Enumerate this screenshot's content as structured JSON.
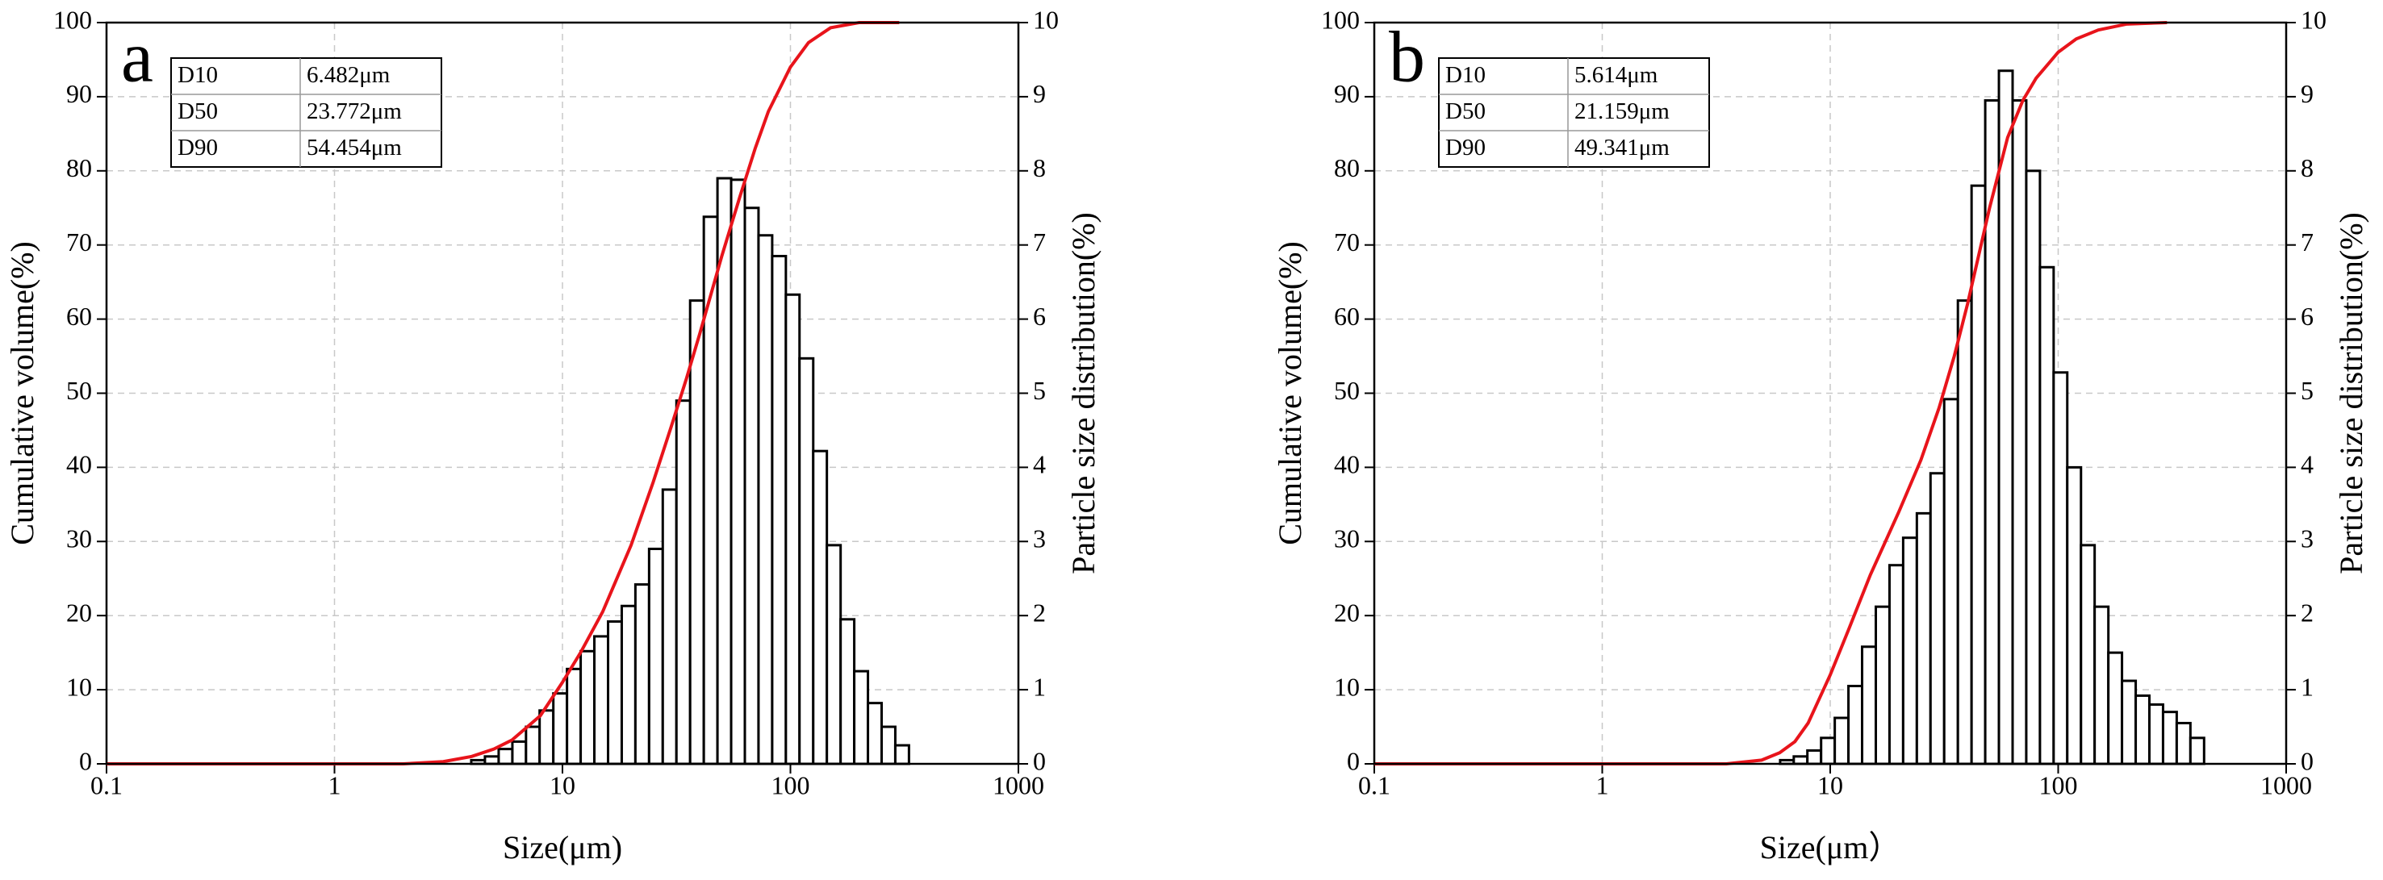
{
  "chart_data": [
    {
      "type": "histogram",
      "panel_label": "a",
      "xlabel": "Size(μm)",
      "ylabel": "Cumulative volume(%)",
      "y2label": "Particle size distribution(%)",
      "table": [
        [
          "D10",
          "6.482μm"
        ],
        [
          "D50",
          "23.772μm"
        ],
        [
          "D90",
          "54.454μm"
        ]
      ],
      "xscale": "log",
      "xlim": [
        0.1,
        1000
      ],
      "xticks": [
        0.1,
        1,
        10,
        100,
        1000
      ],
      "ylim": [
        0,
        100
      ],
      "yticks": [
        0,
        10,
        20,
        30,
        40,
        50,
        60,
        70,
        80,
        90,
        100
      ],
      "y2lim": [
        0,
        10
      ],
      "y2ticks": [
        0,
        1,
        2,
        3,
        4,
        5,
        6,
        7,
        8,
        9,
        10
      ],
      "grid": true,
      "bar_color": "#ffffff",
      "edge_color": "#000000",
      "counts_axis": "y2",
      "bins": [
        3.98,
        4.57,
        5.25,
        6.03,
        6.92,
        7.94,
        9.12,
        10.47,
        12.02,
        13.8,
        15.85,
        18.2,
        20.89,
        23.99,
        27.54,
        31.62,
        36.31,
        41.69,
        47.86,
        54.95,
        63.1,
        72.44,
        83.18,
        95.5,
        109.6,
        125.9,
        144.5,
        166,
        190.5,
        218.8,
        251.2,
        288.4,
        331.1
      ],
      "counts": [
        0.05,
        0.1,
        0.2,
        0.3,
        0.5,
        0.72,
        0.95,
        1.28,
        1.52,
        1.72,
        1.92,
        2.13,
        2.42,
        2.9,
        3.7,
        4.9,
        6.25,
        7.38,
        7.9,
        7.88,
        7.5,
        7.13,
        6.85,
        6.33,
        5.47,
        4.22,
        2.95,
        1.95,
        1.25,
        0.82,
        0.5,
        0.25
      ],
      "curve": {
        "color": "#e8141b",
        "axis": "y",
        "x": [
          0.1,
          2,
          3,
          4,
          5,
          6,
          8,
          10,
          12,
          15,
          20,
          25,
          30,
          35,
          40,
          50,
          60,
          70,
          80,
          100,
          120,
          150,
          200,
          300
        ],
        "values": [
          0,
          0,
          0.3,
          1,
          2,
          3.2,
          6.5,
          11,
          15,
          20.5,
          29.5,
          38,
          45.5,
          52,
          58,
          68.5,
          76.5,
          83,
          88,
          94,
          97.3,
          99.3,
          100,
          100
        ]
      }
    },
    {
      "type": "histogram",
      "panel_label": "b",
      "xlabel": "Size(μm）",
      "ylabel": "Cumulative volume(%)",
      "y2label": "Particle size distribution(%)",
      "table": [
        [
          "D10",
          "5.614μm"
        ],
        [
          "D50",
          "21.159μm"
        ],
        [
          "D90",
          "49.341μm"
        ]
      ],
      "xscale": "log",
      "xlim": [
        0.1,
        1000
      ],
      "xticks": [
        0.1,
        1,
        10,
        100,
        1000
      ],
      "ylim": [
        0,
        100
      ],
      "yticks": [
        0,
        10,
        20,
        30,
        40,
        50,
        60,
        70,
        80,
        90,
        100
      ],
      "y2lim": [
        0,
        10
      ],
      "y2ticks": [
        0,
        1,
        2,
        3,
        4,
        5,
        6,
        7,
        8,
        9,
        10
      ],
      "grid": true,
      "bar_color": "#ffffff",
      "edge_color": "#000000",
      "counts_axis": "y2",
      "bins": [
        6.03,
        6.92,
        7.94,
        9.12,
        10.47,
        12.02,
        13.8,
        15.85,
        18.2,
        20.89,
        23.99,
        27.54,
        31.62,
        36.31,
        41.69,
        47.86,
        54.95,
        63.1,
        72.44,
        83.18,
        95.5,
        109.6,
        125.9,
        144.5,
        166,
        190.5,
        218.8,
        251.2,
        288.4,
        331.1,
        380.2,
        436.5
      ],
      "counts": [
        0.05,
        0.1,
        0.18,
        0.35,
        0.62,
        1.05,
        1.58,
        2.12,
        2.68,
        3.05,
        3.38,
        3.92,
        4.92,
        6.25,
        7.8,
        8.95,
        9.35,
        8.95,
        8.0,
        6.7,
        5.28,
        4.0,
        2.95,
        2.12,
        1.5,
        1.12,
        0.92,
        0.8,
        0.7,
        0.55,
        0.35
      ],
      "curve": {
        "color": "#e8141b",
        "axis": "y",
        "x": [
          0.1,
          3.5,
          5,
          6,
          7,
          8,
          10,
          12,
          15,
          20,
          25,
          30,
          35,
          40,
          50,
          60,
          70,
          80,
          100,
          120,
          150,
          200,
          300
        ],
        "values": [
          0,
          0,
          0.5,
          1.5,
          3,
          5.5,
          12,
          18,
          25.5,
          34,
          41,
          48,
          55,
          62,
          75,
          84.5,
          89.5,
          92.5,
          96,
          97.8,
          99,
          99.8,
          100
        ]
      }
    }
  ]
}
